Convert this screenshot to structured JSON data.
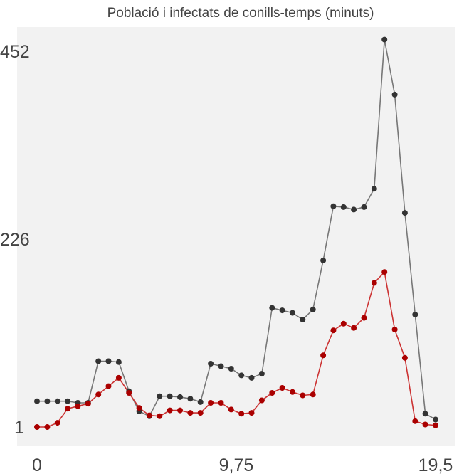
{
  "chart_data": {
    "type": "line",
    "title": "Població i infectats de conills-temps (minuts)",
    "xlabel": "",
    "ylabel": "",
    "xlim": [
      0,
      19.5
    ],
    "ylim": [
      1,
      452
    ],
    "xticks": [
      "0",
      "9,75",
      "19,5"
    ],
    "yticks": [
      "1",
      "226",
      "452"
    ],
    "grid": false,
    "plot_background": "#f2f2f2",
    "x": [
      0.0,
      0.5,
      1.0,
      1.5,
      2.0,
      2.5,
      3.0,
      3.5,
      4.0,
      4.5,
      5.0,
      5.5,
      6.0,
      6.5,
      7.0,
      7.5,
      8.0,
      8.5,
      9.0,
      9.5,
      10.0,
      10.5,
      11.0,
      11.5,
      12.0,
      12.5,
      13.0,
      13.5,
      14.0,
      14.5,
      15.0,
      15.5,
      16.0,
      16.5,
      17.0,
      17.5,
      18.0,
      18.5,
      19.0,
      19.5
    ],
    "series": [
      {
        "color": "#333333",
        "line_color": "#777777",
        "values": [
          32,
          32,
          32,
          32,
          30,
          30,
          80,
          80,
          79,
          44,
          20,
          14,
          38,
          38,
          37,
          35,
          31,
          77,
          74,
          71,
          63,
          60,
          65,
          144,
          141,
          138,
          130,
          142,
          201,
          266,
          265,
          262,
          265,
          287,
          466,
          400,
          258,
          136,
          17,
          10
        ]
      },
      {
        "color": "#aa0000",
        "line_color": "#cc3333",
        "values": [
          1,
          1,
          6,
          23,
          26,
          29,
          40,
          50,
          60,
          42,
          24,
          15,
          14,
          21,
          21,
          18,
          18,
          30,
          30,
          22,
          17,
          18,
          33,
          42,
          48,
          43,
          39,
          40,
          87,
          117,
          125,
          120,
          132,
          174,
          187,
          118,
          84,
          8,
          4,
          3
        ]
      }
    ]
  }
}
